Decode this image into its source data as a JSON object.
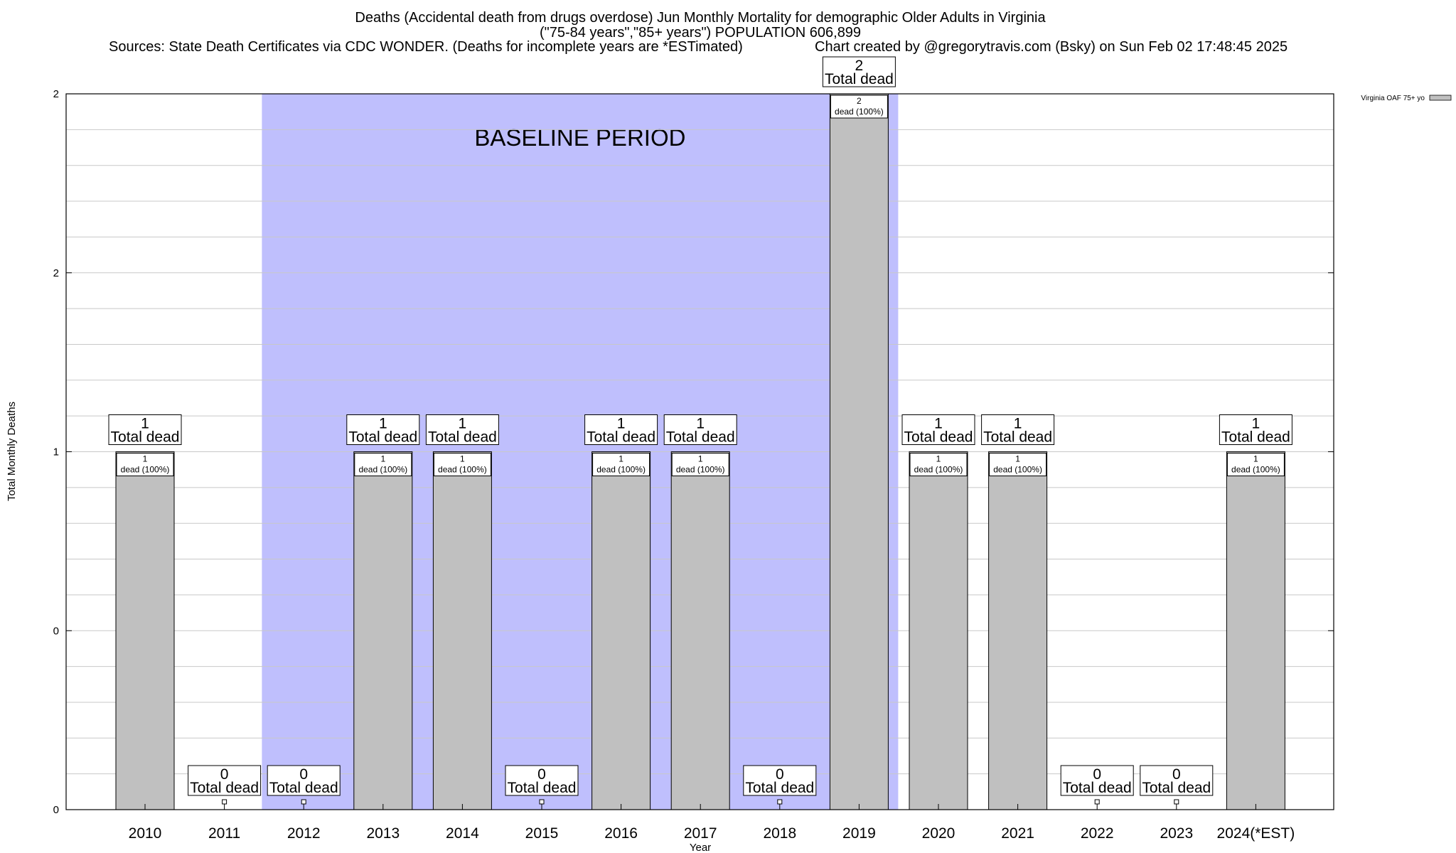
{
  "chart_data": {
    "type": "bar",
    "title_lines": [
      "Deaths (Accidental death from drugs overdose) Jun Monthly Mortality for demographic Older Adults in Virginia",
      "(\"75-84 years\",\"85+ years\") POPULATION 606,899"
    ],
    "sources": "Sources: State Death Certificates via CDC WONDER. (Deaths for incomplete years are *ESTimated)",
    "credit": "Chart created by @gregorytravis.com (Bsky) on Sun Feb 02 17:48:45 2025",
    "xlabel": "Year",
    "ylabel": "Total Monthly Deaths",
    "ylim": [
      0,
      2
    ],
    "y_tick_labels": [
      "0",
      "0",
      "1",
      "2",
      "2"
    ],
    "categories": [
      "2010",
      "2011",
      "2012",
      "2013",
      "2014",
      "2015",
      "2016",
      "2017",
      "2018",
      "2019",
      "2020",
      "2021",
      "2022",
      "2023",
      "2024(*EST)"
    ],
    "series": [
      {
        "name": "Virginia OAF 75+ yo",
        "color": "#c0c0c0",
        "values": [
          1,
          0,
          0,
          1,
          1,
          0,
          1,
          1,
          0,
          2,
          1,
          1,
          0,
          0,
          1
        ]
      }
    ],
    "total_label_suffix": "Total dead",
    "inner_label_suffix": "dead (100%)",
    "baseline": {
      "label": "BASELINE PERIOD",
      "from_category": "2012",
      "to_category": "2019",
      "color": "#bfbffd"
    },
    "grid": true,
    "legend_position": "top-right"
  }
}
